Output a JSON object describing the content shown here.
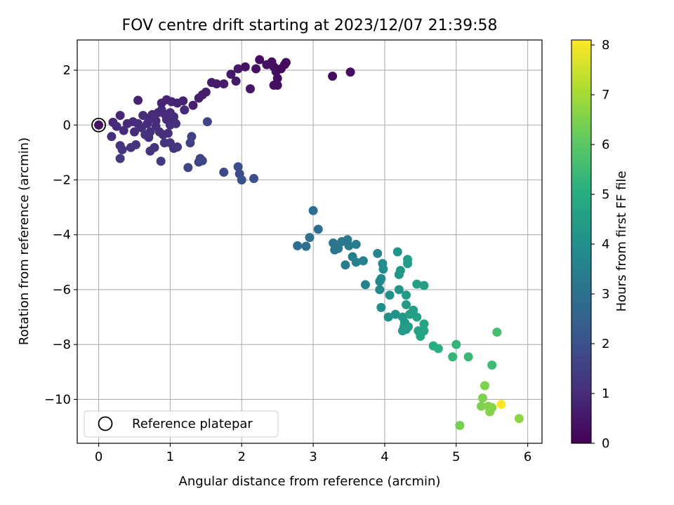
{
  "chart_data": {
    "type": "scatter",
    "title": "FOV centre drift starting at 2023/12/07 21:39:58",
    "xlabel": "Angular distance from reference (arcmin)",
    "ylabel": "Rotation from reference (arcmin)",
    "xlim": [
      -0.3,
      6.2
    ],
    "ylim": [
      -11.6,
      3.1
    ],
    "xticks": [
      0,
      1,
      2,
      3,
      4,
      5,
      6
    ],
    "yticks": [
      -10,
      -8,
      -6,
      -4,
      -2,
      0,
      2
    ],
    "grid": true,
    "colorbar": {
      "label": "Hours from first FF file",
      "range": [
        0,
        8.1
      ],
      "ticks": [
        0,
        1,
        2,
        3,
        4,
        5,
        6,
        7,
        8
      ],
      "colormap": "viridis"
    },
    "legend": {
      "label": "Reference platepar",
      "position": "lower-left"
    },
    "reference_point": {
      "x": 0,
      "y": 0
    },
    "points": [
      {
        "x": 0.2,
        "y": 0.1,
        "t": 0.9
      },
      {
        "x": 0.3,
        "y": 0.35,
        "t": 0.9
      },
      {
        "x": 0.25,
        "y": -0.05,
        "t": 1.0
      },
      {
        "x": 0.35,
        "y": -0.2,
        "t": 1.0
      },
      {
        "x": 0.18,
        "y": -0.42,
        "t": 1.1
      },
      {
        "x": 0.3,
        "y": -0.75,
        "t": 1.2
      },
      {
        "x": 0.33,
        "y": -0.9,
        "t": 1.2
      },
      {
        "x": 0.3,
        "y": -1.22,
        "t": 1.3
      },
      {
        "x": 0.45,
        "y": -0.82,
        "t": 1.2
      },
      {
        "x": 0.52,
        "y": -0.72,
        "t": 1.2
      },
      {
        "x": 0.4,
        "y": 0.05,
        "t": 1.0
      },
      {
        "x": 0.48,
        "y": 0.12,
        "t": 1.0
      },
      {
        "x": 0.5,
        "y": -0.25,
        "t": 1.0
      },
      {
        "x": 0.55,
        "y": 0.05,
        "t": 1.0
      },
      {
        "x": 0.6,
        "y": -0.1,
        "t": 1.1
      },
      {
        "x": 0.62,
        "y": 0.35,
        "t": 1.0
      },
      {
        "x": 0.7,
        "y": 0.25,
        "t": 1.0
      },
      {
        "x": 0.68,
        "y": 0.05,
        "t": 1.0
      },
      {
        "x": 0.72,
        "y": -0.25,
        "t": 1.1
      },
      {
        "x": 0.75,
        "y": 0.38,
        "t": 1.0
      },
      {
        "x": 0.7,
        "y": -0.45,
        "t": 1.1
      },
      {
        "x": 0.72,
        "y": -0.95,
        "t": 1.2
      },
      {
        "x": 0.78,
        "y": -0.82,
        "t": 1.2
      },
      {
        "x": 0.8,
        "y": -0.05,
        "t": 1.1
      },
      {
        "x": 0.83,
        "y": 0.45,
        "t": 1.0
      },
      {
        "x": 0.88,
        "y": 0.55,
        "t": 1.0
      },
      {
        "x": 0.85,
        "y": -0.25,
        "t": 1.1
      },
      {
        "x": 0.9,
        "y": -0.35,
        "t": 1.1
      },
      {
        "x": 0.92,
        "y": -0.65,
        "t": 1.2
      },
      {
        "x": 0.95,
        "y": 0.2,
        "t": 1.0
      },
      {
        "x": 0.97,
        "y": -0.3,
        "t": 1.1
      },
      {
        "x": 1.0,
        "y": -0.65,
        "t": 1.2
      },
      {
        "x": 1.05,
        "y": -0.85,
        "t": 1.2
      },
      {
        "x": 1.0,
        "y": 0.45,
        "t": 1.0
      },
      {
        "x": 1.05,
        "y": 0.3,
        "t": 1.0
      },
      {
        "x": 1.1,
        "y": -0.8,
        "t": 1.3
      },
      {
        "x": 0.87,
        "y": -1.32,
        "t": 1.4
      },
      {
        "x": 0.55,
        "y": 0.9,
        "t": 0.8
      },
      {
        "x": 0.88,
        "y": 0.8,
        "t": 0.8
      },
      {
        "x": 0.95,
        "y": 0.92,
        "t": 0.8
      },
      {
        "x": 1.02,
        "y": 0.85,
        "t": 0.8
      },
      {
        "x": 1.1,
        "y": 0.8,
        "t": 0.8
      },
      {
        "x": 1.18,
        "y": 0.88,
        "t": 0.8
      },
      {
        "x": 1.32,
        "y": 0.72,
        "t": 0.7
      },
      {
        "x": 1.4,
        "y": 0.98,
        "t": 0.7
      },
      {
        "x": 1.45,
        "y": 1.1,
        "t": 0.7
      },
      {
        "x": 1.5,
        "y": 1.2,
        "t": 0.7
      },
      {
        "x": 1.58,
        "y": 1.55,
        "t": 0.6
      },
      {
        "x": 1.65,
        "y": 1.5,
        "t": 0.6
      },
      {
        "x": 1.75,
        "y": 1.5,
        "t": 0.6
      },
      {
        "x": 1.85,
        "y": 1.85,
        "t": 0.5
      },
      {
        "x": 1.92,
        "y": 1.6,
        "t": 0.5
      },
      {
        "x": 1.95,
        "y": 2.05,
        "t": 0.5
      },
      {
        "x": 2.05,
        "y": 2.12,
        "t": 0.4
      },
      {
        "x": 2.12,
        "y": 1.32,
        "t": 0.5
      },
      {
        "x": 2.2,
        "y": 2.05,
        "t": 0.4
      },
      {
        "x": 2.25,
        "y": 2.38,
        "t": 0.3
      },
      {
        "x": 2.35,
        "y": 2.2,
        "t": 0.3
      },
      {
        "x": 2.42,
        "y": 2.3,
        "t": 0.3
      },
      {
        "x": 2.45,
        "y": 2.12,
        "t": 0.3
      },
      {
        "x": 2.48,
        "y": 1.95,
        "t": 0.3
      },
      {
        "x": 2.5,
        "y": 1.7,
        "t": 0.3
      },
      {
        "x": 2.5,
        "y": 1.45,
        "t": 0.3
      },
      {
        "x": 2.45,
        "y": 1.45,
        "t": 0.3
      },
      {
        "x": 2.55,
        "y": 2.05,
        "t": 0.2
      },
      {
        "x": 2.6,
        "y": 2.2,
        "t": 0.2
      },
      {
        "x": 2.62,
        "y": 2.28,
        "t": 0.2
      },
      {
        "x": 3.27,
        "y": 1.78,
        "t": 0.3
      },
      {
        "x": 3.52,
        "y": 1.93,
        "t": 0.3
      },
      {
        "x": 1.0,
        "y": 0.0,
        "t": 1.1
      },
      {
        "x": 1.2,
        "y": 0.55,
        "t": 1.0
      },
      {
        "x": 1.08,
        "y": 0.05,
        "t": 1.1
      },
      {
        "x": 0.65,
        "y": -0.35,
        "t": 1.2
      },
      {
        "x": 0.8,
        "y": 0.15,
        "t": 1.0
      },
      {
        "x": 0.93,
        "y": 0.38,
        "t": 1.0
      },
      {
        "x": 1.28,
        "y": -0.65,
        "t": 1.6
      },
      {
        "x": 1.3,
        "y": -0.42,
        "t": 1.6
      },
      {
        "x": 1.25,
        "y": -1.55,
        "t": 1.7
      },
      {
        "x": 1.42,
        "y": -1.22,
        "t": 1.7
      },
      {
        "x": 1.45,
        "y": -1.3,
        "t": 1.7
      },
      {
        "x": 1.4,
        "y": -1.35,
        "t": 1.7
      },
      {
        "x": 1.52,
        "y": 0.12,
        "t": 1.7
      },
      {
        "x": 1.75,
        "y": -1.72,
        "t": 1.8
      },
      {
        "x": 1.95,
        "y": -1.52,
        "t": 1.9
      },
      {
        "x": 1.97,
        "y": -1.78,
        "t": 1.9
      },
      {
        "x": 2.0,
        "y": -2.0,
        "t": 2.0
      },
      {
        "x": 2.17,
        "y": -1.95,
        "t": 2.0
      },
      {
        "x": 2.78,
        "y": -4.4,
        "t": 2.9
      },
      {
        "x": 2.9,
        "y": -4.42,
        "t": 2.9
      },
      {
        "x": 2.95,
        "y": -4.1,
        "t": 3.0
      },
      {
        "x": 3.0,
        "y": -3.12,
        "t": 2.9
      },
      {
        "x": 3.07,
        "y": -3.8,
        "t": 2.9
      },
      {
        "x": 3.28,
        "y": -4.3,
        "t": 3.2
      },
      {
        "x": 3.3,
        "y": -4.55,
        "t": 3.2
      },
      {
        "x": 3.35,
        "y": -4.5,
        "t": 3.2
      },
      {
        "x": 3.4,
        "y": -4.25,
        "t": 3.3
      },
      {
        "x": 3.48,
        "y": -4.18,
        "t": 3.3
      },
      {
        "x": 3.5,
        "y": -4.4,
        "t": 3.3
      },
      {
        "x": 3.45,
        "y": -5.1,
        "t": 3.4
      },
      {
        "x": 3.55,
        "y": -4.8,
        "t": 3.4
      },
      {
        "x": 3.6,
        "y": -4.35,
        "t": 3.4
      },
      {
        "x": 3.6,
        "y": -5.0,
        "t": 3.5
      },
      {
        "x": 3.7,
        "y": -4.95,
        "t": 3.5
      },
      {
        "x": 3.73,
        "y": -5.82,
        "t": 3.6
      },
      {
        "x": 3.9,
        "y": -4.68,
        "t": 3.7
      },
      {
        "x": 3.93,
        "y": -5.7,
        "t": 3.8
      },
      {
        "x": 3.93,
        "y": -6.0,
        "t": 3.8
      },
      {
        "x": 3.95,
        "y": -5.6,
        "t": 3.8
      },
      {
        "x": 3.97,
        "y": -5.05,
        "t": 3.9
      },
      {
        "x": 3.98,
        "y": -5.25,
        "t": 3.9
      },
      {
        "x": 3.95,
        "y": -6.65,
        "t": 4.0
      },
      {
        "x": 4.05,
        "y": -7.0,
        "t": 4.1
      },
      {
        "x": 4.07,
        "y": -6.2,
        "t": 4.1
      },
      {
        "x": 4.15,
        "y": -6.9,
        "t": 4.2
      },
      {
        "x": 4.18,
        "y": -4.62,
        "t": 4.2
      },
      {
        "x": 4.2,
        "y": -5.45,
        "t": 4.2
      },
      {
        "x": 4.2,
        "y": -6.0,
        "t": 4.2
      },
      {
        "x": 4.22,
        "y": -5.3,
        "t": 4.3
      },
      {
        "x": 4.25,
        "y": -7.0,
        "t": 4.3
      },
      {
        "x": 4.28,
        "y": -7.2,
        "t": 4.3
      },
      {
        "x": 4.25,
        "y": -7.5,
        "t": 4.4
      },
      {
        "x": 4.3,
        "y": -6.55,
        "t": 4.4
      },
      {
        "x": 4.3,
        "y": -6.2,
        "t": 4.4
      },
      {
        "x": 4.32,
        "y": -4.9,
        "t": 4.4
      },
      {
        "x": 4.32,
        "y": -5.05,
        "t": 4.4
      },
      {
        "x": 4.33,
        "y": -7.35,
        "t": 4.5
      },
      {
        "x": 4.35,
        "y": -6.9,
        "t": 4.5
      },
      {
        "x": 4.4,
        "y": -6.75,
        "t": 4.5
      },
      {
        "x": 4.45,
        "y": -7.0,
        "t": 4.6
      },
      {
        "x": 4.45,
        "y": -5.8,
        "t": 4.5
      },
      {
        "x": 4.47,
        "y": -7.5,
        "t": 4.6
      },
      {
        "x": 4.5,
        "y": -7.7,
        "t": 4.7
      },
      {
        "x": 4.55,
        "y": -7.5,
        "t": 4.7
      },
      {
        "x": 4.55,
        "y": -7.25,
        "t": 4.7
      },
      {
        "x": 4.55,
        "y": -5.85,
        "t": 4.5
      },
      {
        "x": 4.27,
        "y": -7.35,
        "t": 4.4
      },
      {
        "x": 4.3,
        "y": -7.45,
        "t": 4.4
      },
      {
        "x": 4.68,
        "y": -8.05,
        "t": 5.0
      },
      {
        "x": 4.75,
        "y": -8.15,
        "t": 5.1
      },
      {
        "x": 4.95,
        "y": -8.45,
        "t": 5.3
      },
      {
        "x": 5.0,
        "y": -8.0,
        "t": 5.3
      },
      {
        "x": 5.17,
        "y": -8.45,
        "t": 5.4
      },
      {
        "x": 5.5,
        "y": -8.75,
        "t": 5.5
      },
      {
        "x": 5.57,
        "y": -7.55,
        "t": 5.6
      },
      {
        "x": 5.05,
        "y": -10.95,
        "t": 6.4
      },
      {
        "x": 5.35,
        "y": -10.25,
        "t": 6.5
      },
      {
        "x": 5.37,
        "y": -9.95,
        "t": 6.5
      },
      {
        "x": 5.4,
        "y": -9.5,
        "t": 6.5
      },
      {
        "x": 5.45,
        "y": -10.25,
        "t": 6.6
      },
      {
        "x": 5.47,
        "y": -10.45,
        "t": 6.6
      },
      {
        "x": 5.5,
        "y": -10.3,
        "t": 6.6
      },
      {
        "x": 5.88,
        "y": -10.7,
        "t": 6.7
      },
      {
        "x": 5.63,
        "y": -10.18,
        "t": 8.1
      }
    ]
  }
}
